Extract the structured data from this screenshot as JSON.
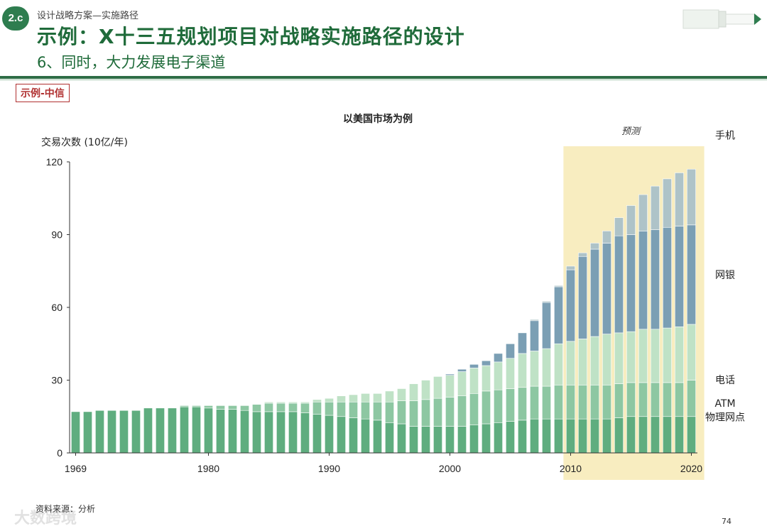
{
  "header": {
    "badge": "2.c",
    "breadcrumb": "设计战略方案—实施路径",
    "title": "示例：X十三五规划项目对战略实施路径的设计",
    "subtitle": "6、同时，大力发展电子渠道",
    "example_tag": "示例-中信"
  },
  "footer": {
    "source": "资料来源：分析",
    "page_number": "74",
    "watermark": "大数跨境"
  },
  "colors": {
    "physical": "#5fad7f",
    "atm": "#8dc7a2",
    "phone": "#bfe2c6",
    "online": "#7b9fb4",
    "mobile": "#aec3c8",
    "forecast_bg": "#f8edc0",
    "brand_green": "#2e7d4f"
  },
  "chart_data": {
    "type": "bar",
    "stacked": true,
    "title": "以美国市场为例",
    "ylabel": "交易次数 (10亿/年)",
    "xlabel": "",
    "ylim": [
      0,
      120
    ],
    "yticks": [
      "0",
      "30",
      "60",
      "90",
      "120"
    ],
    "xtick_labels": [
      "1969",
      "1980",
      "1990",
      "2000",
      "2010",
      "2020"
    ],
    "forecast_label": "预测",
    "forecast_range": [
      2010,
      2020
    ],
    "categories": [
      1969,
      1970,
      1971,
      1972,
      1973,
      1974,
      1975,
      1976,
      1977,
      1978,
      1979,
      1980,
      1981,
      1982,
      1983,
      1984,
      1985,
      1986,
      1987,
      1988,
      1989,
      1990,
      1991,
      1992,
      1993,
      1994,
      1995,
      1996,
      1997,
      1998,
      1999,
      2000,
      2001,
      2002,
      2003,
      2004,
      2005,
      2006,
      2007,
      2008,
      2009,
      2010,
      2011,
      2012,
      2013,
      2014,
      2015,
      2016,
      2017,
      2018,
      2019,
      2020
    ],
    "series": [
      {
        "name": "物理网点",
        "key": "physical",
        "values": [
          17,
          17,
          17.5,
          17.5,
          17.5,
          17.5,
          18.5,
          18.5,
          18.5,
          19,
          19,
          18.5,
          18,
          18,
          17.5,
          17,
          17,
          17,
          17,
          16.5,
          16,
          15.5,
          15,
          14.5,
          14,
          13.5,
          12.5,
          12,
          11,
          11,
          11,
          11,
          11,
          11.5,
          12,
          12.5,
          13,
          13.5,
          14,
          14,
          14,
          14,
          14,
          14,
          14,
          14.5,
          15,
          15,
          15,
          15,
          15,
          15
        ]
      },
      {
        "name": "ATM",
        "key": "atm",
        "values": [
          0,
          0,
          0,
          0,
          0,
          0,
          0,
          0,
          0,
          0.5,
          0.5,
          1,
          1.5,
          1.5,
          2,
          3,
          3.5,
          3.5,
          3.5,
          4,
          5,
          5.5,
          6,
          6.5,
          7,
          7.5,
          8.5,
          9.5,
          10.5,
          11,
          11.5,
          12,
          12.5,
          13,
          13.5,
          13.5,
          13.5,
          13.5,
          13.5,
          13.5,
          14,
          14,
          14,
          14,
          14,
          14,
          14,
          14,
          14,
          14,
          14,
          15
        ]
      },
      {
        "name": "电话",
        "key": "phone",
        "values": [
          0,
          0,
          0,
          0,
          0,
          0,
          0,
          0,
          0,
          0,
          0,
          0,
          0,
          0,
          0,
          0,
          0.5,
          0.5,
          0.5,
          0.5,
          1,
          1.5,
          2.5,
          3,
          3.5,
          3.5,
          4.5,
          5,
          7,
          8,
          9,
          9,
          10,
          10.5,
          10.5,
          11.5,
          12.5,
          14,
          14.5,
          15.5,
          17,
          18,
          19,
          20,
          21,
          21,
          21,
          22,
          22,
          22.5,
          23,
          23
        ]
      },
      {
        "name": "网银",
        "key": "online",
        "values": [
          0,
          0,
          0,
          0,
          0,
          0,
          0,
          0,
          0,
          0,
          0,
          0,
          0,
          0,
          0,
          0,
          0,
          0,
          0,
          0,
          0,
          0,
          0,
          0,
          0,
          0,
          0,
          0,
          0,
          0,
          0,
          0.5,
          1,
          1.5,
          2,
          3.5,
          6,
          8.5,
          12.5,
          19,
          23.5,
          29.5,
          34,
          36,
          37.5,
          40,
          40,
          40.5,
          41,
          41.5,
          41.5,
          41
        ]
      },
      {
        "name": "手机",
        "key": "mobile",
        "values": [
          0,
          0,
          0,
          0,
          0,
          0,
          0,
          0,
          0,
          0,
          0,
          0,
          0,
          0,
          0,
          0,
          0,
          0,
          0,
          0,
          0,
          0,
          0,
          0,
          0,
          0,
          0,
          0,
          0,
          0,
          0,
          0,
          0,
          0,
          0,
          0,
          0,
          0,
          0.5,
          0.5,
          0.5,
          1.5,
          1.5,
          2.5,
          5,
          7.5,
          12,
          15,
          18,
          20,
          22,
          23
        ]
      }
    ]
  }
}
